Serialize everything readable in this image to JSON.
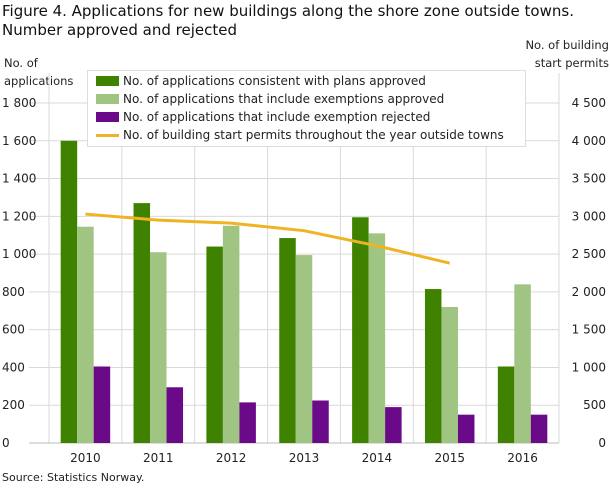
{
  "chart_data": {
    "type": "bar",
    "title": "Figure 4. Applications for  new buildings along the shore zone outside towns. Number approved and rejected",
    "ylabel": "No. of applications",
    "y2label": "No. of building start permits",
    "source": "Source: Statistics Norway.",
    "categories": [
      "2010",
      "2011",
      "2012",
      "2013",
      "2014",
      "2015",
      "2016"
    ],
    "ylim": [
      0,
      1800
    ],
    "yticks": [
      "0",
      "200",
      "400",
      "600",
      "800",
      "1 000",
      "1 200",
      "1 400",
      "1 600",
      "1 800"
    ],
    "y2lim": [
      0,
      4500
    ],
    "y2ticks": [
      "0",
      "500",
      "1 000",
      "1 500",
      "2 000",
      "2 500",
      "3 000",
      "3 500",
      "4 000",
      "4 500"
    ],
    "grid": true,
    "legend_placement": "top",
    "series": [
      {
        "name": "No. of applications consistent with plans approved",
        "type": "bar",
        "axis": "left",
        "color": "#3f8200",
        "values": [
          1600,
          1270,
          1040,
          1085,
          1195,
          815,
          405
        ]
      },
      {
        "name": "No. of applications that include exemptions approved",
        "type": "bar",
        "axis": "left",
        "color": "#a0c482",
        "values": [
          1145,
          1010,
          1150,
          995,
          1110,
          720,
          840
        ]
      },
      {
        "name": "No. of applications that include exemption rejected",
        "type": "bar",
        "axis": "left",
        "color": "#6a0a88",
        "values": [
          405,
          295,
          215,
          225,
          190,
          150,
          150
        ]
      },
      {
        "name": "No. of building start permits throughout the year outside towns",
        "type": "line",
        "axis": "right",
        "color": "#f0b323",
        "values": [
          3030,
          2950,
          2910,
          2810,
          2610,
          2380,
          null
        ]
      }
    ]
  }
}
